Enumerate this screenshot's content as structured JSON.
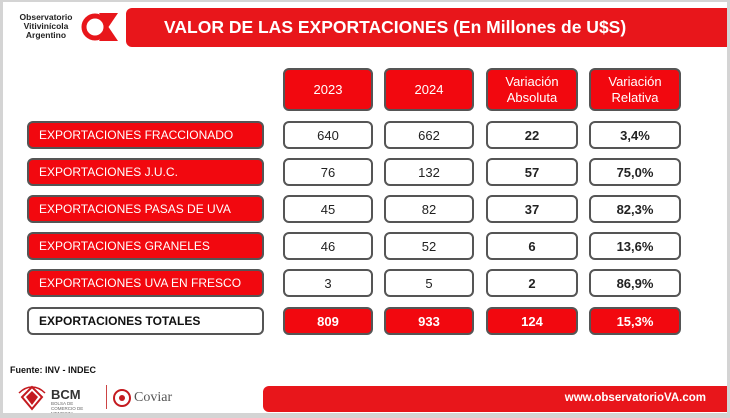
{
  "logo": {
    "line1": "Observatorio",
    "line2": "Vitivinícola",
    "line3": "Argentino"
  },
  "header": {
    "title": "VALOR DE LAS EXPORTACIONES (En Millones de U$S)"
  },
  "table": {
    "columns": [
      {
        "line1": "2023",
        "line2": ""
      },
      {
        "line1": "2024",
        "line2": ""
      },
      {
        "line1": "Variación",
        "line2": "Absoluta"
      },
      {
        "line1": "Variación",
        "line2": "Relativa"
      }
    ],
    "rows": [
      {
        "label": "EXPORTACIONES  FRACCIONADO",
        "v2023": "640",
        "v2024": "662",
        "abs": "22",
        "rel": "3,4%"
      },
      {
        "label": "EXPORTACIONES J.U.C.",
        "v2023": "76",
        "v2024": "132",
        "abs": "57",
        "rel": "75,0%"
      },
      {
        "label": "EXPORTACIONES PASAS DE UVA",
        "v2023": "45",
        "v2024": "82",
        "abs": "37",
        "rel": "82,3%"
      },
      {
        "label": "EXPORTACIONES GRANELES",
        "v2023": "46",
        "v2024": "52",
        "abs": "6",
        "rel": "13,6%"
      },
      {
        "label": "EXPORTACIONES UVA EN FRESCO",
        "v2023": "3",
        "v2024": "5",
        "abs": "2",
        "rel": "86,9%"
      }
    ],
    "total": {
      "label": "EXPORTACIONES TOTALES",
      "v2023": "809",
      "v2024": "933",
      "abs": "124",
      "rel": "15,3%"
    }
  },
  "source": "Fuente: INV - INDEC",
  "footer": {
    "bcm": "BCM",
    "bcm_sub": "BOLSA DE COMERCIO DE MENDOZA",
    "coviar": "Coviar",
    "url": "www.observatorioVA.com"
  },
  "colors": {
    "accent": "#e8161b",
    "cell_red": "#f2080f",
    "border": "#555555"
  }
}
